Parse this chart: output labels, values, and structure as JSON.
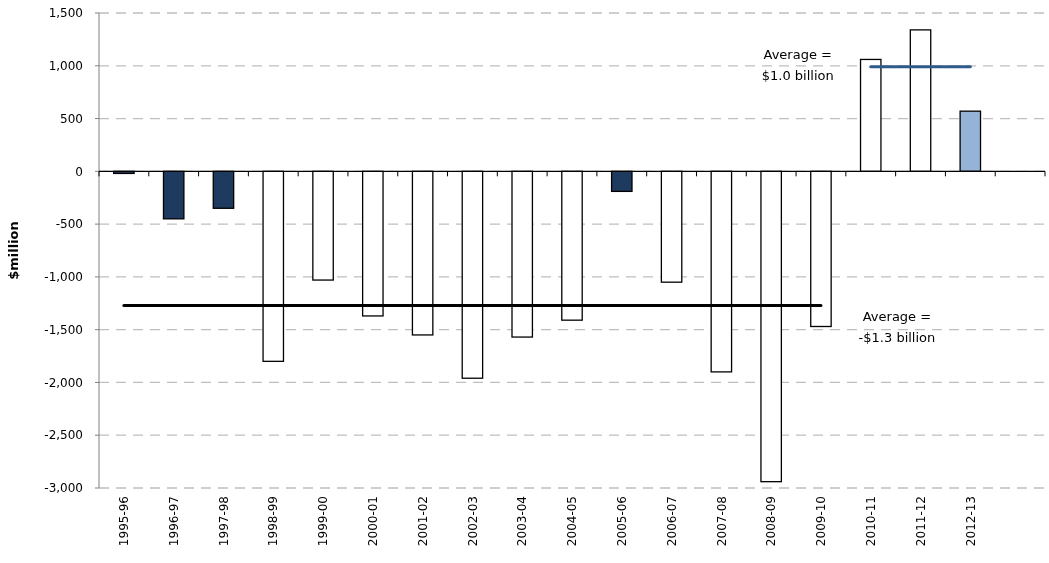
{
  "chart_data": {
    "type": "bar",
    "ylabel": "$million",
    "categories": [
      "1995-96",
      "1996-97",
      "1997-98",
      "1998-99",
      "1999-00",
      "2000-01",
      "2001-02",
      "2002-03",
      "2003-04",
      "2004-05",
      "2005-06",
      "2006-07",
      "2007-08",
      "2008-09",
      "2009-10",
      "2010-11",
      "2011-12",
      "2012-13",
      null
    ],
    "series": [
      {
        "colors": [
          "#1f3a5f",
          "#1f3a5f",
          "#1f3a5f",
          "#ffffff",
          "#ffffff",
          "#ffffff",
          "#ffffff",
          "#ffffff",
          "#ffffff",
          "#ffffff",
          "#1f3a5f",
          "#ffffff",
          "#ffffff",
          "#ffffff",
          "#ffffff",
          "#ffffff",
          "#ffffff",
          "#95b3d7",
          null
        ],
        "values": [
          -20,
          -450,
          -350,
          -1800,
          -1030,
          -1370,
          -1550,
          -1960,
          -1570,
          -1410,
          -190,
          -1050,
          -1900,
          -2940,
          -1470,
          1060,
          1340,
          570,
          null
        ]
      },
      {
        "type": "line",
        "color": "#000000",
        "values": [
          -1270,
          -1270,
          -1270,
          -1270,
          -1270,
          -1270,
          -1270,
          -1270,
          -1270,
          -1270,
          -1270,
          -1270,
          -1270,
          -1270,
          -1270,
          null,
          null,
          null,
          null
        ]
      },
      {
        "type": "line",
        "color": "#2e5b8c",
        "values": [
          null,
          null,
          null,
          null,
          null,
          null,
          null,
          null,
          null,
          null,
          null,
          null,
          null,
          null,
          null,
          990,
          990,
          990,
          null
        ]
      }
    ],
    "ylim": [
      -3000,
      1500
    ],
    "yticks": [
      {
        "value": -3000,
        "label": "-3,000"
      },
      {
        "value": -2500,
        "label": "-2,500"
      },
      {
        "value": -2000,
        "label": "-2,000"
      },
      {
        "value": -1500,
        "label": "-1,500"
      },
      {
        "value": -1000,
        "label": "-1,000"
      },
      -500,
      0,
      500,
      {
        "value": 1000,
        "label": "1,000"
      },
      {
        "value": 1500,
        "label": "1,500"
      }
    ],
    "grid": "y",
    "annotations": [
      "Average =\n-$1.3 billion",
      "Average =\n$1.0 billion"
    ]
  }
}
